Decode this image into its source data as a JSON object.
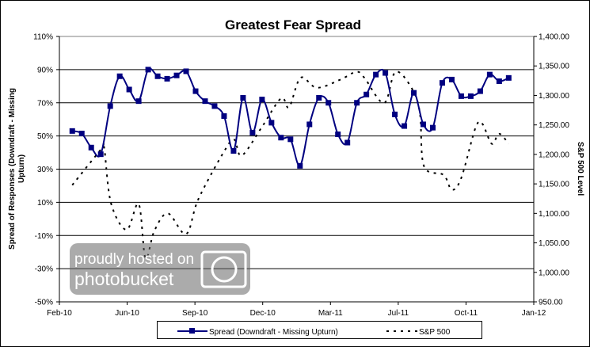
{
  "chart_data": {
    "type": "line",
    "title": "Greatest Fear Spread",
    "ylabel": "Spread of Responses (Downdraft - Missing Upturn)",
    "ylabel_lines": [
      "Spread of Responses (Downdraft - Missing",
      "Upturn)"
    ],
    "y2label": "S&P 500 Level",
    "x_unit": "days since Feb-1-2010",
    "xlim": [
      0,
      700
    ],
    "x_ticks": [
      "Feb-10",
      "Jun-10",
      "Sep-10",
      "Dec-10",
      "Mar-11",
      "Jul-11",
      "Oct-11",
      "Jan-12"
    ],
    "ylim": [
      -50,
      110
    ],
    "y_ticks": [
      "110%",
      "90%",
      "70%",
      "50%",
      "30%",
      "10%",
      "-10%",
      "-30%",
      "-50%"
    ],
    "y2lim": [
      950,
      1400
    ],
    "y2_ticks": [
      "1,400.00",
      "1,350.00",
      "1,300.00",
      "1,250.00",
      "1,200.00",
      "1,150.00",
      "1,100.00",
      "1,050.00",
      "1,000.00",
      "950.00"
    ],
    "grid": true,
    "legend_position": "bottom",
    "series": [
      {
        "name": "Spread (Downdraft - Missing Upturn)",
        "color": "#000080",
        "axis": "left",
        "x_start": 19,
        "x_step": 14,
        "values": [
          53,
          51.5,
          43,
          39,
          68,
          86,
          78,
          71,
          90,
          86,
          84.5,
          86.5,
          89,
          77,
          71,
          68,
          62,
          41,
          73,
          52,
          72,
          58,
          49,
          48,
          32,
          57,
          73,
          70,
          51,
          46,
          70,
          75,
          87,
          88,
          63,
          56,
          76,
          57,
          55,
          82,
          84,
          74,
          74,
          77,
          87,
          83,
          85
        ]
      },
      {
        "name": "S&P 500",
        "color": "#000000",
        "axis": "right",
        "points": [
          [
            19,
            1148
          ],
          [
            61,
            1208
          ],
          [
            66,
            1212
          ],
          [
            76,
            1118
          ],
          [
            99,
            1072
          ],
          [
            117,
            1116
          ],
          [
            127,
            1024
          ],
          [
            140,
            1070
          ],
          [
            160,
            1100
          ],
          [
            187,
            1065
          ],
          [
            205,
            1124
          ],
          [
            243,
            1205
          ],
          [
            258,
            1225
          ],
          [
            269,
            1198
          ],
          [
            298,
            1245
          ],
          [
            327,
            1295
          ],
          [
            339,
            1280
          ],
          [
            356,
            1330
          ],
          [
            380,
            1313
          ],
          [
            415,
            1327
          ],
          [
            438,
            1340
          ],
          [
            450,
            1330
          ],
          [
            479,
            1287
          ],
          [
            496,
            1340
          ],
          [
            520,
            1312
          ],
          [
            532,
            1270
          ],
          [
            538,
            1180
          ],
          [
            567,
            1165
          ],
          [
            579,
            1140
          ],
          [
            593,
            1160
          ],
          [
            614,
            1245
          ],
          [
            624,
            1252
          ],
          [
            638,
            1218
          ],
          [
            649,
            1235
          ],
          [
            663,
            1218
          ]
        ]
      }
    ]
  },
  "watermark": {
    "line1": "proudly hosted on",
    "line2": "photobucket"
  }
}
